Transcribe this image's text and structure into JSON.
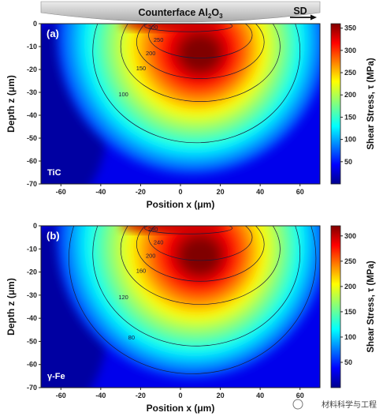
{
  "header": {
    "counterface_label": "Counterface Al",
    "counterface_sub": "2",
    "counterface_o": "O",
    "counterface_sub2": "3",
    "sd_label": "SD"
  },
  "watermark": "材料科学与工程",
  "chart_data": [
    {
      "type": "heatmap",
      "panel_label": "(a)",
      "material": "TiC",
      "xlabel": "Position x (μm)",
      "ylabel": "Depth z (μm)",
      "xlim": [
        -70,
        70
      ],
      "ylim": [
        -70,
        0
      ],
      "xticks": [
        -60,
        -40,
        -20,
        0,
        20,
        40,
        60
      ],
      "yticks": [
        0,
        -10,
        -20,
        -30,
        -40,
        -50,
        -60,
        -70
      ],
      "colorbar": {
        "label": "Shear Stress, τ (MPa)",
        "min": 0,
        "max": 360,
        "ticks": [
          50,
          100,
          150,
          200,
          250,
          300,
          350
        ]
      },
      "peak": {
        "x": 10,
        "z": -13,
        "value": 360
      },
      "contours": [
        {
          "level": 300,
          "label": "300"
        },
        {
          "level": 250,
          "label": "250"
        },
        {
          "level": 200,
          "label": "200"
        },
        {
          "level": 150,
          "label": "150"
        },
        {
          "level": 100,
          "label": "100"
        }
      ]
    },
    {
      "type": "heatmap",
      "panel_label": "(b)",
      "material": "γ-Fe",
      "xlabel": "Position x (μm)",
      "ylabel": "Depth z (μm)",
      "xlim": [
        -70,
        70
      ],
      "ylim": [
        -70,
        0
      ],
      "xticks": [
        -60,
        -40,
        -20,
        0,
        20,
        40,
        60
      ],
      "yticks": [
        0,
        -10,
        -20,
        -30,
        -40,
        -50,
        -60,
        -70
      ],
      "colorbar": {
        "label": "Shear Stress, τ (MPa)",
        "min": 0,
        "max": 320,
        "ticks": [
          50,
          100,
          150,
          200,
          250,
          300
        ]
      },
      "peak": {
        "x": 10,
        "z": -13,
        "value": 320
      },
      "contours": [
        {
          "level": 280,
          "label": "280"
        },
        {
          "level": 240,
          "label": "240"
        },
        {
          "level": 200,
          "label": "200"
        },
        {
          "level": 160,
          "label": "160"
        },
        {
          "level": 120,
          "label": "120"
        },
        {
          "level": 80,
          "label": "80"
        }
      ]
    }
  ]
}
